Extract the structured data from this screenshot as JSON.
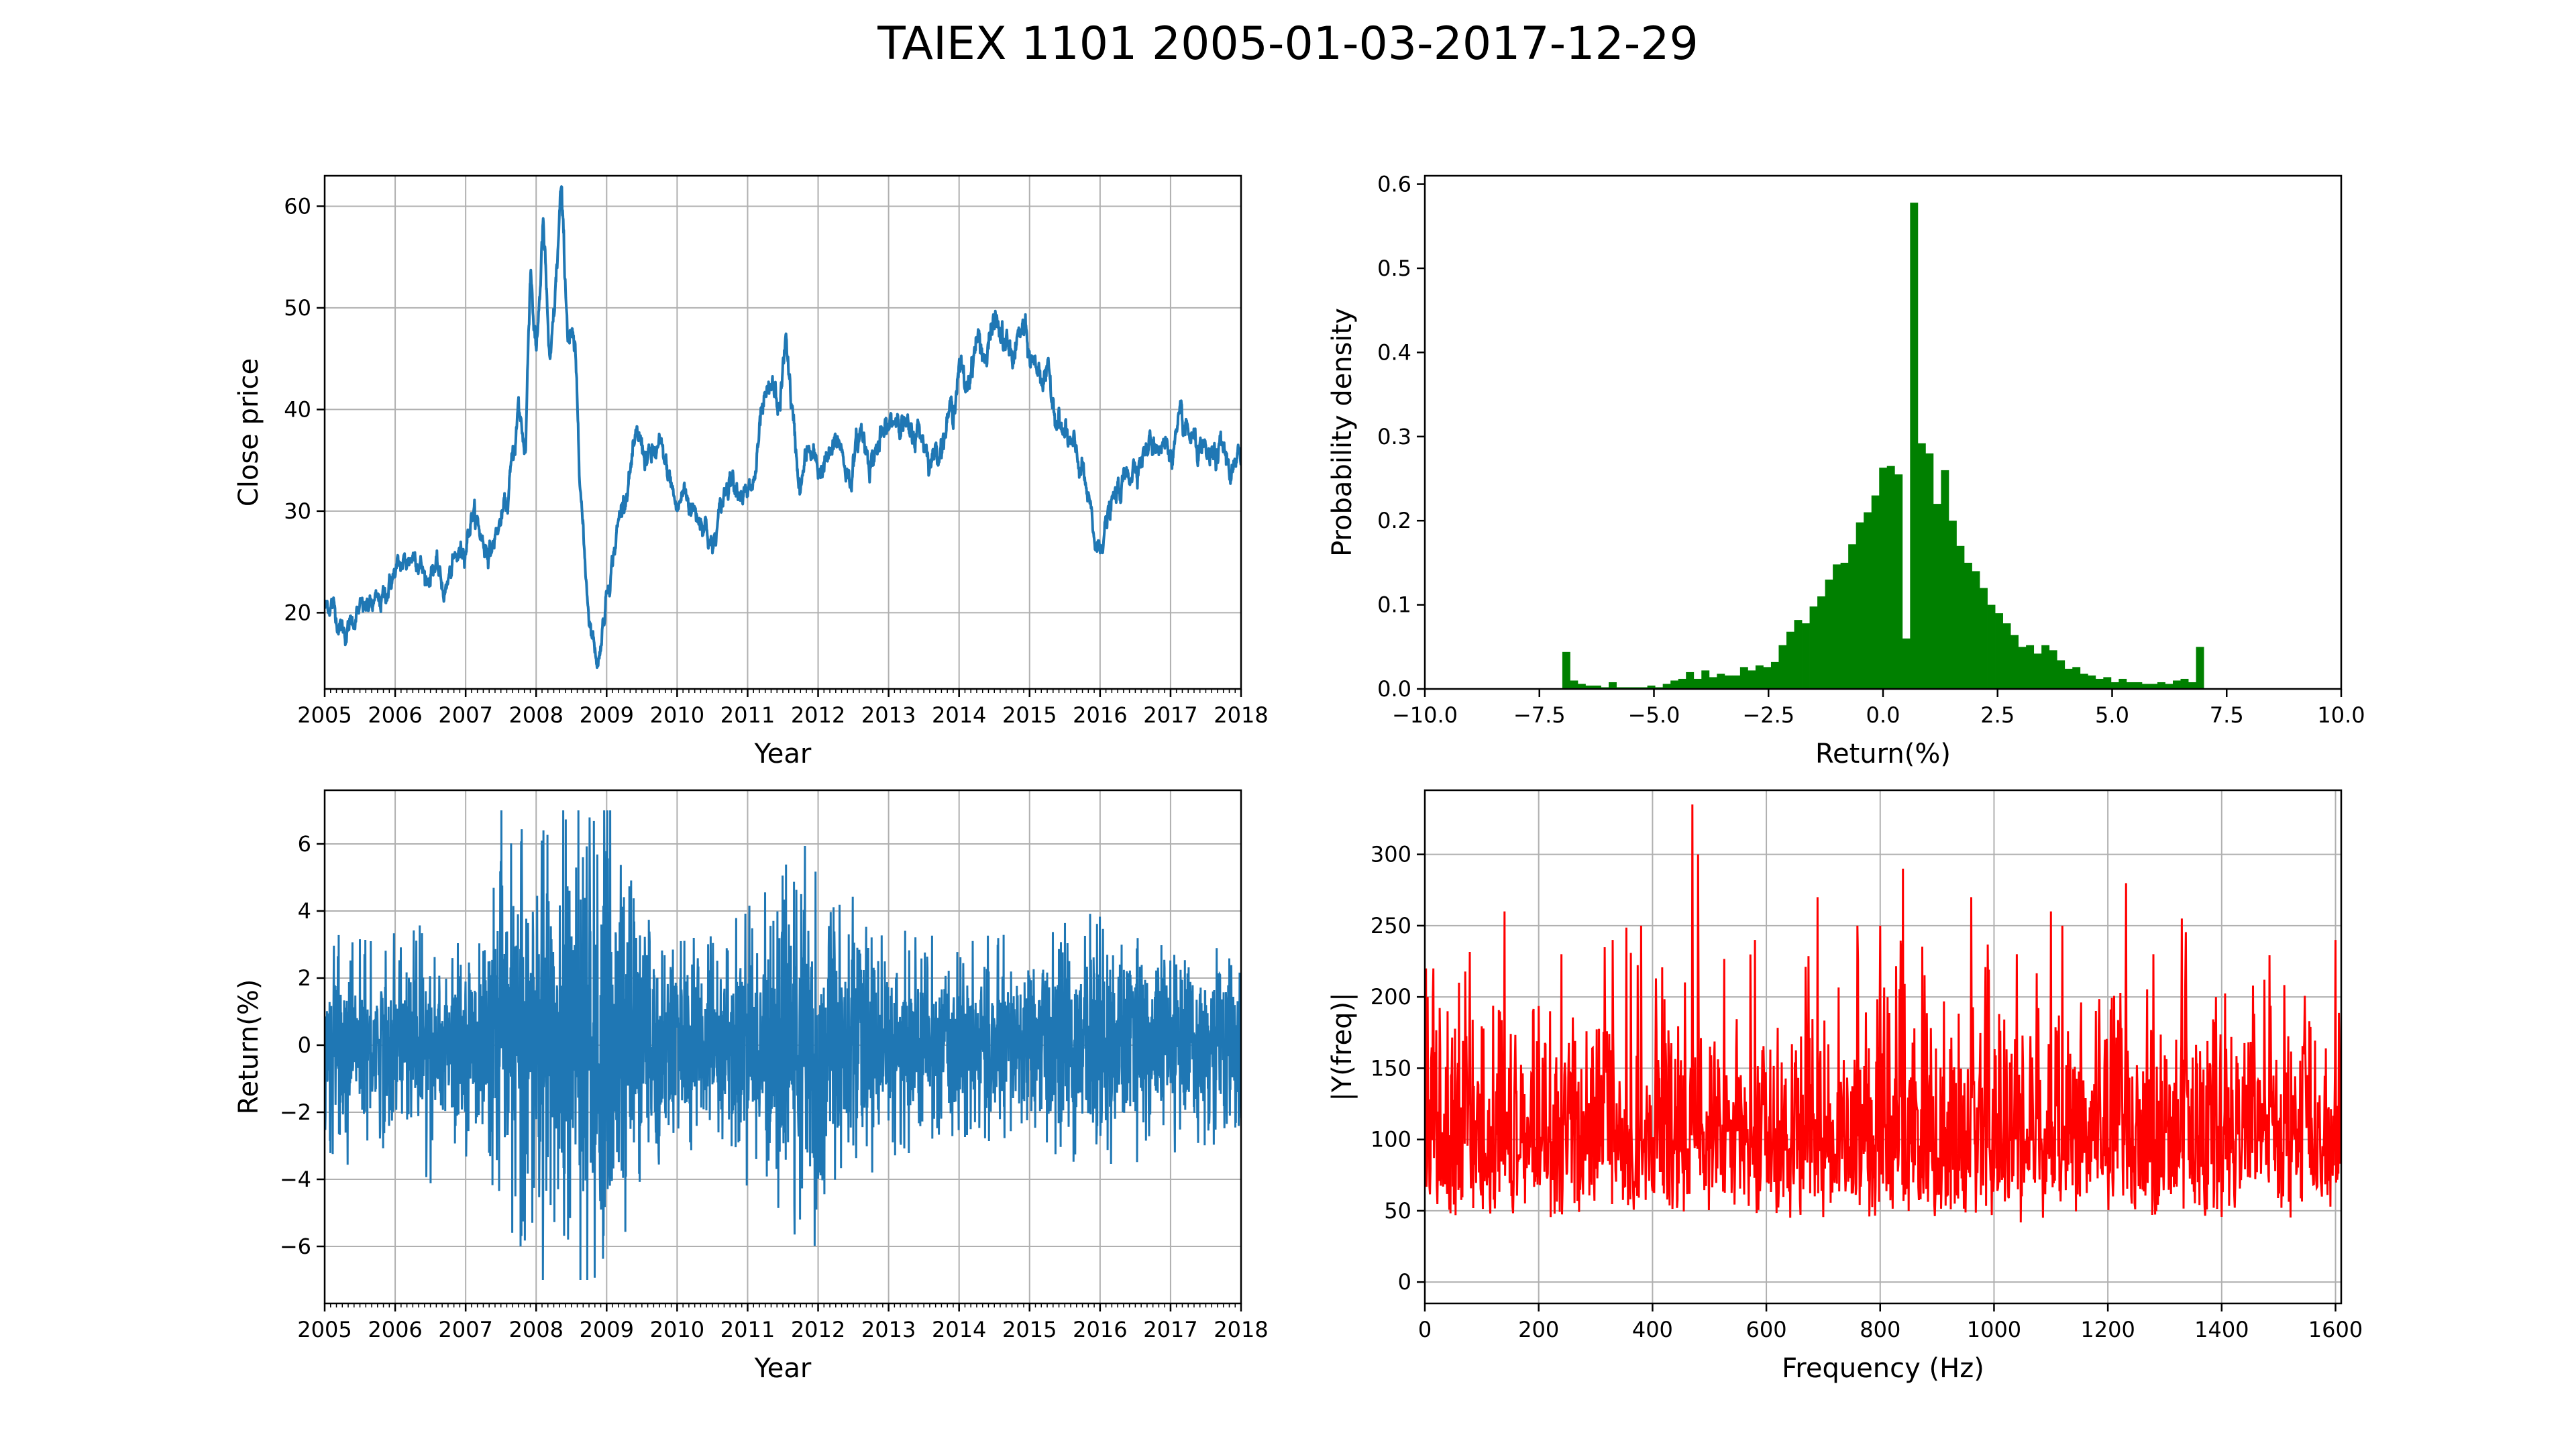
{
  "figure": {
    "title": "TAIEX 1101 2005-01-03-2017-12-29"
  },
  "chart_data": [
    {
      "type": "line",
      "xlabel": "Year",
      "ylabel": "Close price",
      "xlim": [
        2005,
        2018
      ],
      "ylim": [
        12.5,
        63
      ],
      "xticks": [
        2005,
        2006,
        2007,
        2008,
        2009,
        2010,
        2011,
        2012,
        2013,
        2014,
        2015,
        2016,
        2017,
        2018
      ],
      "yticks": [
        20,
        30,
        40,
        50,
        60
      ],
      "grid": true,
      "color": "#1f77b4",
      "series": [
        {
          "x": [
            2005.0,
            2005.1,
            2005.2,
            2005.3,
            2005.45,
            2005.6,
            2005.8,
            2006.0,
            2006.15,
            2006.3,
            2006.45,
            2006.55,
            2006.7,
            2006.85,
            2007.0,
            2007.1,
            2007.25,
            2007.35,
            2007.5,
            2007.6,
            2007.75,
            2007.85,
            2007.92,
            2008.0,
            2008.1,
            2008.2,
            2008.28,
            2008.35,
            2008.45,
            2008.55,
            2008.62,
            2008.68,
            2008.75,
            2008.82,
            2008.88,
            2009.0,
            2009.1,
            2009.2,
            2009.3,
            2009.45,
            2009.6,
            2009.75,
            2009.9,
            2010.0,
            2010.1,
            2010.25,
            2010.4,
            2010.5,
            2010.65,
            2010.75,
            2010.85,
            2011.0,
            2011.1,
            2011.2,
            2011.35,
            2011.45,
            2011.55,
            2011.65,
            2011.75,
            2011.85,
            2012.0,
            2012.15,
            2012.3,
            2012.45,
            2012.6,
            2012.75,
            2012.9,
            2013.0,
            2013.15,
            2013.3,
            2013.45,
            2013.6,
            2013.75,
            2013.9,
            2014.0,
            2014.1,
            2014.25,
            2014.4,
            2014.5,
            2014.6,
            2014.75,
            2014.9,
            2015.0,
            2015.15,
            2015.3,
            2015.45,
            2015.6,
            2015.75,
            2015.85,
            2015.95,
            2016.05,
            2016.2,
            2016.35,
            2016.5,
            2016.65,
            2016.8,
            2017.0,
            2017.15,
            2017.3,
            2017.45,
            2017.6,
            2017.75,
            2017.85,
            2017.95,
            2018.0
          ],
          "values": [
            20.5,
            21,
            19,
            18,
            20,
            20.5,
            21,
            24,
            25,
            26,
            23,
            25,
            22,
            25,
            27,
            30,
            27,
            26,
            29,
            31,
            40,
            36,
            55,
            45,
            58,
            43,
            52,
            61,
            48,
            45,
            35,
            26,
            20,
            17,
            15,
            22,
            26,
            30,
            33,
            37,
            35,
            36,
            33,
            30,
            32,
            30,
            29,
            26,
            31,
            34,
            33,
            31,
            33,
            39,
            42,
            40,
            47,
            38,
            32,
            36,
            34,
            35,
            37,
            33,
            38,
            35,
            37,
            38,
            40,
            37,
            38,
            35,
            37,
            40,
            44,
            42,
            47,
            45,
            49,
            47,
            45,
            48,
            45,
            44,
            42,
            38,
            36,
            34,
            30,
            26,
            28,
            31,
            33,
            35,
            36,
            37,
            36,
            38,
            37,
            35,
            35,
            36,
            34,
            34,
            36
          ]
        }
      ]
    },
    {
      "type": "bar",
      "xlabel": "Return(%)",
      "ylabel": "Probability density",
      "xlim": [
        -10,
        10
      ],
      "ylim": [
        0,
        0.61
      ],
      "xticks": [
        -10.0,
        -7.5,
        -5.0,
        -2.5,
        0.0,
        2.5,
        5.0,
        7.5,
        10.0
      ],
      "xtick_labels": [
        "−10.0",
        "−7.5",
        "−5.0",
        "−2.5",
        "0.0",
        "2.5",
        "5.0",
        "7.5",
        "10.0"
      ],
      "yticks": [
        0.0,
        0.1,
        0.2,
        0.3,
        0.4,
        0.5,
        0.6
      ],
      "grid": false,
      "color": "#008000",
      "bin_edges_range": [
        -7.0,
        7.0
      ],
      "values": [
        0.044,
        0.01,
        0.006,
        0.004,
        0.004,
        0.002,
        0.008,
        0.002,
        0.002,
        0.002,
        0.002,
        0.004,
        0.002,
        0.006,
        0.01,
        0.012,
        0.02,
        0.012,
        0.022,
        0.014,
        0.018,
        0.016,
        0.016,
        0.026,
        0.022,
        0.028,
        0.026,
        0.032,
        0.052,
        0.068,
        0.082,
        0.078,
        0.098,
        0.11,
        0.13,
        0.148,
        0.15,
        0.172,
        0.198,
        0.21,
        0.23,
        0.263,
        0.265,
        0.255,
        0.06,
        0.578,
        0.292,
        0.28,
        0.22,
        0.26,
        0.2,
        0.17,
        0.15,
        0.14,
        0.12,
        0.1,
        0.09,
        0.078,
        0.064,
        0.05,
        0.052,
        0.042,
        0.052,
        0.046,
        0.034,
        0.024,
        0.026,
        0.018,
        0.016,
        0.012,
        0.014,
        0.008,
        0.012,
        0.008,
        0.008,
        0.006,
        0.006,
        0.008,
        0.006,
        0.01,
        0.012,
        0.008,
        0.05
      ]
    },
    {
      "type": "line",
      "xlabel": "Year",
      "ylabel": "Return(%)",
      "xlim": [
        2005,
        2018
      ],
      "ylim": [
        -7.7,
        7.6
      ],
      "xticks": [
        2005,
        2006,
        2007,
        2008,
        2009,
        2010,
        2011,
        2012,
        2013,
        2014,
        2015,
        2016,
        2017,
        2018
      ],
      "yticks": [
        -6,
        -4,
        -2,
        0,
        2,
        4,
        6
      ],
      "grid": true,
      "color": "#1f77b4",
      "volatility_profile": {
        "x": [
          2005,
          2005.5,
          2006,
          2006.5,
          2007,
          2007.5,
          2008,
          2008.5,
          2009,
          2009.5,
          2010,
          2010.5,
          2011,
          2011.5,
          2012,
          2012.5,
          2013,
          2013.5,
          2014,
          2014.5,
          2015,
          2015.5,
          2016,
          2016.5,
          2017,
          2017.5,
          2018
        ],
        "amplitude": [
          3.2,
          3.0,
          2.8,
          3.5,
          2.6,
          4.5,
          6.0,
          6.5,
          6.8,
          4.5,
          3.0,
          3.0,
          3.5,
          4.5,
          5.5,
          3.5,
          3.0,
          2.8,
          2.6,
          2.8,
          2.6,
          3.5,
          3.5,
          3.0,
          3.0,
          2.8,
          2.8
        ]
      }
    },
    {
      "type": "line",
      "xlabel": "Frequency (Hz)",
      "ylabel": "|Y(freq)|",
      "xlim": [
        0,
        1610
      ],
      "ylim": [
        -15,
        345
      ],
      "xticks": [
        0,
        200,
        400,
        600,
        800,
        1000,
        1200,
        1400,
        1600
      ],
      "yticks": [
        0,
        50,
        100,
        150,
        200,
        250,
        300
      ],
      "grid": true,
      "color": "#ff0000",
      "peaks": {
        "x": [
          2,
          5,
          15,
          40,
          60,
          140,
          220,
          240,
          330,
          380,
          470,
          480,
          580,
          690,
          760,
          800,
          840,
          960,
          1040,
          1100,
          1120,
          1280,
          1330,
          1390,
          1600
        ],
        "values": [
          220,
          200,
          220,
          190,
          210,
          260,
          190,
          230,
          240,
          250,
          335,
          300,
          240,
          270,
          250,
          250,
          290,
          270,
          230,
          260,
          250,
          230,
          255,
          200,
          240
        ]
      }
    }
  ]
}
